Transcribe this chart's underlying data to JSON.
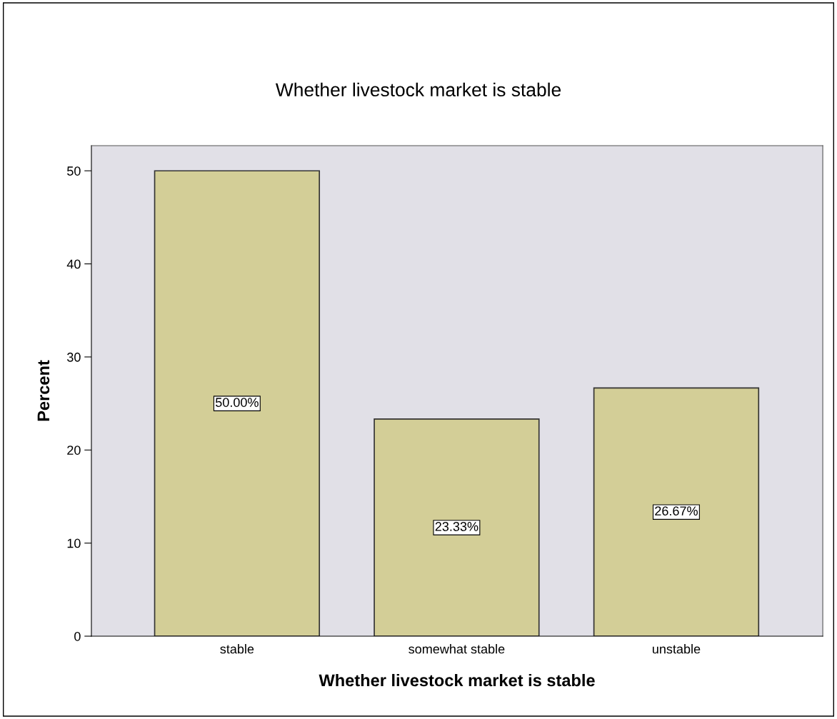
{
  "chart_data": {
    "type": "bar",
    "title": "Whether livestock market is stable",
    "xlabel": "Whether livestock market is stable",
    "ylabel": "Percent",
    "categories": [
      "stable",
      "somewhat stable",
      "unstable"
    ],
    "values": [
      50.0,
      23.33,
      26.67
    ],
    "value_labels": [
      "50.00%",
      "23.33%",
      "26.67%"
    ],
    "color": "#d3ce97",
    "ylim": [
      0,
      52.7
    ],
    "yticks": [
      0,
      10,
      20,
      30,
      40,
      50
    ],
    "grid": false
  }
}
